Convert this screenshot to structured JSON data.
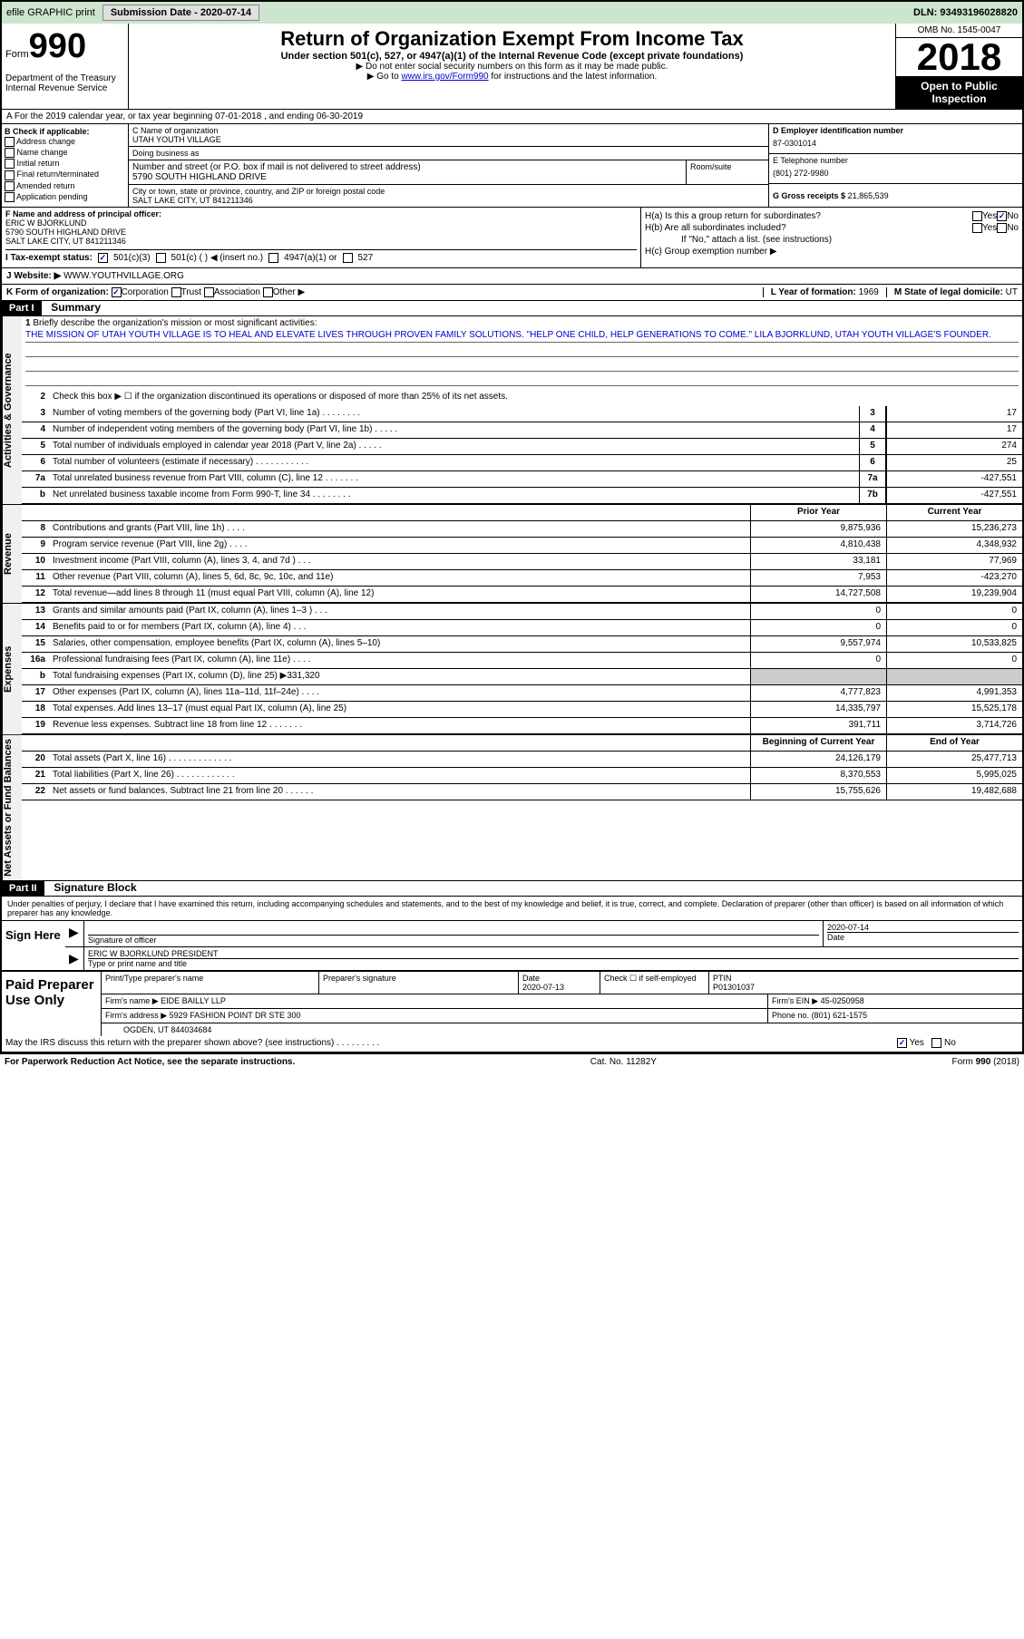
{
  "topbar": {
    "efile": "efile GRAPHIC print",
    "subdate_label": "Submission Date - ",
    "subdate": "2020-07-14",
    "dln": "DLN: 93493196028820"
  },
  "header": {
    "form_prefix": "Form",
    "form_num": "990",
    "dept": "Department of the Treasury\nInternal Revenue Service",
    "title": "Return of Organization Exempt From Income Tax",
    "sub": "Under section 501(c), 527, or 4947(a)(1) of the Internal Revenue Code (except private foundations)",
    "note1": "▶ Do not enter social security numbers on this form as it may be made public.",
    "note2_pre": "▶ Go to ",
    "note2_link": "www.irs.gov/Form990",
    "note2_post": " for instructions and the latest information.",
    "omb": "OMB No. 1545-0047",
    "year": "2018",
    "open": "Open to Public Inspection"
  },
  "rowA": "A For the 2019 calendar year, or tax year beginning 07-01-2018   , and ending 06-30-2019",
  "B": {
    "label": "B Check if applicable:",
    "opts": [
      "Address change",
      "Name change",
      "Initial return",
      "Final return/terminated",
      "Amended return",
      "Application pending"
    ]
  },
  "C": {
    "name_label": "C Name of organization",
    "name": "UTAH YOUTH VILLAGE",
    "dba_label": "Doing business as",
    "dba": "",
    "addr_label": "Number and street (or P.O. box if mail is not delivered to street address)",
    "addr": "5790 SOUTH HIGHLAND DRIVE",
    "room_label": "Room/suite",
    "city_label": "City or town, state or province, country, and ZIP or foreign postal code",
    "city": "SALT LAKE CITY, UT  841211346"
  },
  "D": {
    "label": "D Employer identification number",
    "val": "87-0301014"
  },
  "E": {
    "label": "E Telephone number",
    "val": "(801) 272-9980"
  },
  "G": {
    "label": "G Gross receipts $",
    "val": "21,865,539"
  },
  "F": {
    "label": "F  Name and address of principal officer:",
    "name": "ERIC W BJORKLUND",
    "addr1": "5790 SOUTH HIGHLAND DRIVE",
    "addr2": "SALT LAKE CITY, UT  841211346"
  },
  "H": {
    "a": "H(a)  Is this a group return for subordinates?",
    "b": "H(b)  Are all subordinates included?",
    "b_note": "If \"No,\" attach a list. (see instructions)",
    "c": "H(c)  Group exemption number ▶"
  },
  "I": {
    "label": "I  Tax-exempt status:",
    "o1": "501(c)(3)",
    "o2": "501(c) (  ) ◀ (insert no.)",
    "o3": "4947(a)(1) or",
    "o4": "527"
  },
  "J": {
    "label": "J   Website: ▶",
    "val": "WWW.YOUTHVILLAGE.ORG"
  },
  "K": {
    "label": "K Form of organization:",
    "opts": [
      "Corporation",
      "Trust",
      "Association",
      "Other ▶"
    ]
  },
  "L": {
    "label": "L Year of formation:",
    "val": "1969"
  },
  "M": {
    "label": "M State of legal domicile:",
    "val": "UT"
  },
  "part1": {
    "hdr": "Part I",
    "title": "Summary"
  },
  "mission": {
    "num": "1",
    "label": "Briefly describe the organization's mission or most significant activities:",
    "text": "THE MISSION OF UTAH YOUTH VILLAGE IS TO HEAL AND ELEVATE LIVES THROUGH PROVEN FAMILY SOLUTIONS. \"HELP ONE CHILD, HELP GENERATIONS TO COME.\" LILA BJORKLUND, UTAH YOUTH VILLAGE'S FOUNDER."
  },
  "line2": "Check this box ▶ ☐  if the organization discontinued its operations or disposed of more than 25% of its net assets.",
  "gov_lines": [
    {
      "n": "3",
      "d": "Number of voting members of the governing body (Part VI, line 1a)   .   .   .   .   .   .   .   .",
      "b": "3",
      "v": "17"
    },
    {
      "n": "4",
      "d": "Number of independent voting members of the governing body (Part VI, line 1b)  .   .   .   .   .",
      "b": "4",
      "v": "17"
    },
    {
      "n": "5",
      "d": "Total number of individuals employed in calendar year 2018 (Part V, line 2a)  .   .   .   .   .",
      "b": "5",
      "v": "274"
    },
    {
      "n": "6",
      "d": "Total number of volunteers (estimate if necessary)    .   .   .   .   .   .   .   .   .   .   .",
      "b": "6",
      "v": "25"
    },
    {
      "n": "7a",
      "d": "Total unrelated business revenue from Part VIII, column (C), line 12   .   .   .   .   .   .   .",
      "b": "7a",
      "v": "-427,551"
    },
    {
      "n": "b",
      "d": "Net unrelated business taxable income from Form 990-T, line 34  .   .   .   .   .   .   .   .",
      "b": "7b",
      "v": "-427,551"
    }
  ],
  "pycy_hdr": {
    "py": "Prior Year",
    "cy": "Current Year"
  },
  "rev_lines": [
    {
      "n": "8",
      "d": "Contributions and grants (Part VIII, line 1h)  .   .   .   .",
      "py": "9,875,936",
      "cy": "15,236,273"
    },
    {
      "n": "9",
      "d": "Program service revenue (Part VIII, line 2g)  .   .   .   .",
      "py": "4,810,438",
      "cy": "4,348,932"
    },
    {
      "n": "10",
      "d": "Investment income (Part VIII, column (A), lines 3, 4, and 7d )   .   .   .",
      "py": "33,181",
      "cy": "77,969"
    },
    {
      "n": "11",
      "d": "Other revenue (Part VIII, column (A), lines 5, 6d, 8c, 9c, 10c, and 11e)",
      "py": "7,953",
      "cy": "-423,270"
    },
    {
      "n": "12",
      "d": "Total revenue—add lines 8 through 11 (must equal Part VIII, column (A), line 12)",
      "py": "14,727,508",
      "cy": "19,239,904"
    }
  ],
  "exp_lines": [
    {
      "n": "13",
      "d": "Grants and similar amounts paid (Part IX, column (A), lines 1–3 )  .   .   .",
      "py": "0",
      "cy": "0"
    },
    {
      "n": "14",
      "d": "Benefits paid to or for members (Part IX, column (A), line 4)  .   .   .",
      "py": "0",
      "cy": "0"
    },
    {
      "n": "15",
      "d": "Salaries, other compensation, employee benefits (Part IX, column (A), lines 5–10)",
      "py": "9,557,974",
      "cy": "10,533,825"
    },
    {
      "n": "16a",
      "d": "Professional fundraising fees (Part IX, column (A), line 11e)  .   .   .   .",
      "py": "0",
      "cy": "0"
    },
    {
      "n": "b",
      "d": "Total fundraising expenses (Part IX, column (D), line 25) ▶331,320",
      "py": "",
      "cy": "",
      "gray": true
    },
    {
      "n": "17",
      "d": "Other expenses (Part IX, column (A), lines 11a–11d, 11f–24e)  .   .   .   .",
      "py": "4,777,823",
      "cy": "4,991,353"
    },
    {
      "n": "18",
      "d": "Total expenses. Add lines 13–17 (must equal Part IX, column (A), line 25)",
      "py": "14,335,797",
      "cy": "15,525,178"
    },
    {
      "n": "19",
      "d": "Revenue less expenses. Subtract line 18 from line 12  .   .   .   .   .   .   .",
      "py": "391,711",
      "cy": "3,714,726"
    }
  ],
  "na_hdr": {
    "py": "Beginning of Current Year",
    "cy": "End of Year"
  },
  "na_lines": [
    {
      "n": "20",
      "d": "Total assets (Part X, line 16)  .   .   .   .   .   .   .   .   .   .   .   .   .",
      "py": "24,126,179",
      "cy": "25,477,713"
    },
    {
      "n": "21",
      "d": "Total liabilities (Part X, line 26)  .   .   .   .   .   .   .   .   .   .   .   .",
      "py": "8,370,553",
      "cy": "5,995,025"
    },
    {
      "n": "22",
      "d": "Net assets or fund balances. Subtract line 21 from line 20  .   .   .   .   .   .",
      "py": "15,755,626",
      "cy": "19,482,688"
    }
  ],
  "part2": {
    "hdr": "Part II",
    "title": "Signature Block"
  },
  "decl": "Under penalties of perjury, I declare that I have examined this return, including accompanying schedules and statements, and to the best of my knowledge and belief, it is true, correct, and complete. Declaration of preparer (other than officer) is based on all information of which preparer has any knowledge.",
  "sign": {
    "here": "Sign Here",
    "sig_label": "Signature of officer",
    "date_label": "Date",
    "date": "2020-07-14",
    "name": "ERIC W BJORKLUND  PRESIDENT",
    "name_label": "Type or print name and title"
  },
  "prep": {
    "left": "Paid Preparer Use Only",
    "pname_label": "Print/Type preparer's name",
    "psig_label": "Preparer's signature",
    "pdate_label": "Date",
    "pdate": "2020-07-13",
    "check_label": "Check ☐ if self-employed",
    "ptin_label": "PTIN",
    "ptin": "P01301037",
    "firm_label": "Firm's name    ▶",
    "firm": "EIDE BAILLY LLP",
    "ein_label": "Firm's EIN ▶",
    "ein": "45-0250958",
    "addr_label": "Firm's address ▶",
    "addr1": "5929 FASHION POINT DR STE 300",
    "addr2": "OGDEN, UT  844034684",
    "phone_label": "Phone no.",
    "phone": "(801) 621-1575"
  },
  "discuss": "May the IRS discuss this return with the preparer shown above? (see instructions)   .   .   .   .   .   .   .   .   .",
  "footer": {
    "pra": "For Paperwork Reduction Act Notice, see the separate instructions.",
    "cat": "Cat. No. 11282Y",
    "form": "Form 990 (2018)"
  },
  "vtabs": {
    "gov": "Activities & Governance",
    "rev": "Revenue",
    "exp": "Expenses",
    "na": "Net Assets or Fund Balances"
  }
}
